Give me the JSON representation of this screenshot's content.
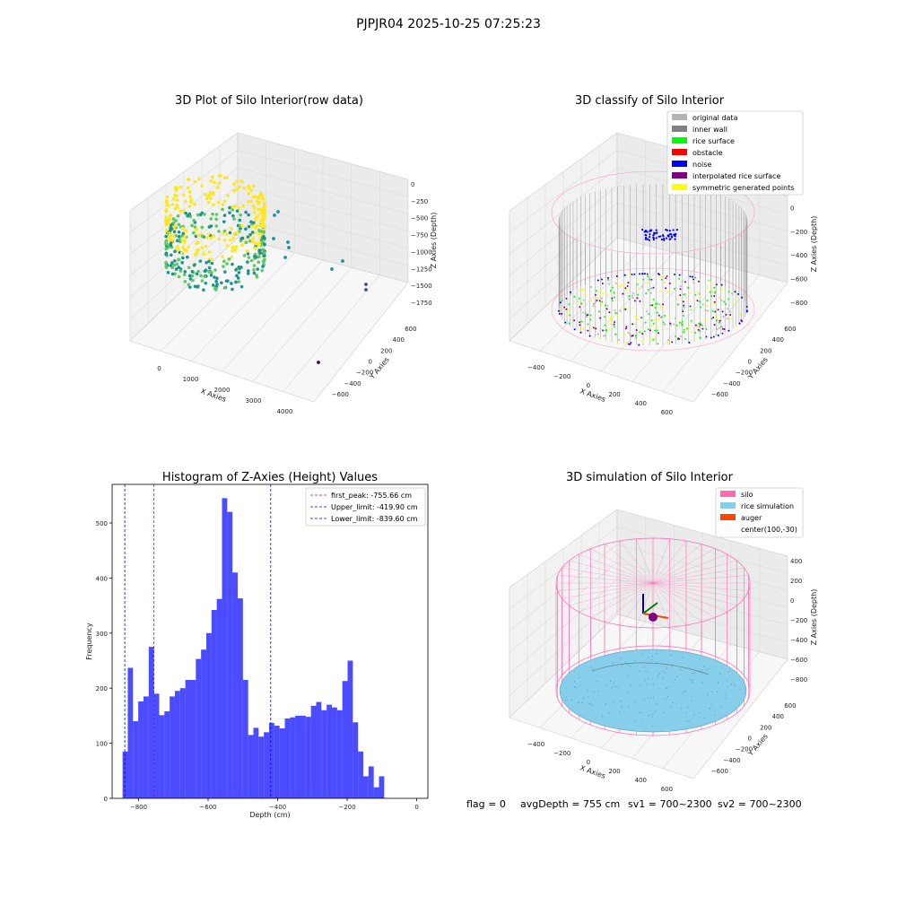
{
  "suptitle": "PJPJR04 2025-10-25 07:25:23",
  "footer": {
    "flag": "flag = 0",
    "avg_depth": "avgDepth = 755 cm",
    "sv1": "sv1 = 700~2300",
    "sv2": "sv2 = 700~2300"
  },
  "chart_data": [
    {
      "type": "scatter",
      "title": "3D Plot of Silo Interior(row data)",
      "xlabel": "X Axies",
      "ylabel": "Y Axies",
      "zlabel": "Z Axies (Depth)",
      "x_ticks": [
        "0",
        "1000",
        "2000",
        "3000",
        "4000"
      ],
      "y_ticks": [
        "600",
        "400",
        "200",
        "0",
        "−200",
        "−400",
        "−600"
      ],
      "z_ticks": [
        "0",
        "−250",
        "−500",
        "−750",
        "−1000",
        "−1250",
        "−1500",
        "−1750"
      ],
      "colormap": [
        "#fde725",
        "#5ec962",
        "#21918c",
        "#3b528b",
        "#440154"
      ]
    },
    {
      "type": "scatter",
      "title": "3D classify of Silo Interior",
      "xlabel": "X Axies",
      "ylabel": "Y Axies",
      "zlabel": "Z Axies (Depth)",
      "x_ticks": [
        "−400",
        "−200",
        "0",
        "200",
        "400",
        "600"
      ],
      "y_ticks": [
        "600",
        "400",
        "200",
        "0",
        "−200",
        "−400",
        "−600"
      ],
      "z_ticks": [
        "200",
        "0",
        "−200",
        "−400",
        "−600",
        "−800"
      ],
      "legend": [
        {
          "label": "original data",
          "color": "#b3b3b3"
        },
        {
          "label": "inner wall",
          "color": "#808080"
        },
        {
          "label": "rice surface",
          "color": "#00ff00"
        },
        {
          "label": "obstacle",
          "color": "#ff0000"
        },
        {
          "label": "noise",
          "color": "#0000ff"
        },
        {
          "label": "interpolated rice surface",
          "color": "#800080"
        },
        {
          "label": "symmetric generated points",
          "color": "#ffff00"
        }
      ]
    },
    {
      "type": "bar",
      "title": "Histogram of Z-Axies (Height) Values",
      "xlabel": "Depth (cm)",
      "ylabel": "Frequency",
      "xlim": [
        -876,
        32
      ],
      "ylim": [
        0,
        570
      ],
      "x_ticks": [
        -800,
        -600,
        -400,
        -200,
        0
      ],
      "x_tick_labels": [
        "−800",
        "−600",
        "−400",
        "−200",
        "0"
      ],
      "y_ticks": [
        0,
        100,
        200,
        300,
        400,
        500
      ],
      "bar_color": "#0000ff",
      "bin_start": -846,
      "bin_width": 15.05,
      "values": [
        85,
        237,
        140,
        176,
        185,
        275,
        190,
        151,
        158,
        185,
        195,
        200,
        215,
        215,
        253,
        270,
        300,
        342,
        362,
        545,
        520,
        410,
        363,
        215,
        115,
        128,
        112,
        120,
        137,
        132,
        127,
        145,
        147,
        150,
        150,
        148,
        168,
        175,
        160,
        170,
        165,
        160,
        213,
        250,
        138,
        85,
        40,
        58,
        20,
        40
      ],
      "vlines": [
        {
          "label": "first_peak: -755.66 cm",
          "x": -755.66,
          "color": "#ff0000"
        },
        {
          "label": "Upper_limit: -419.90 cm",
          "x": -419.9,
          "color": "#0000ff"
        },
        {
          "label": "Lower_limit: -839.60 cm",
          "x": -839.6,
          "color": "#0000ff"
        }
      ]
    },
    {
      "type": "scatter",
      "title": "3D simulation of Silo Interior",
      "xlabel": "X Axies",
      "ylabel": "Y Axies",
      "zlabel": "Z Axies (Depth)",
      "x_ticks": [
        "−400",
        "−200",
        "0",
        "200",
        "400",
        "600"
      ],
      "y_ticks": [
        "600",
        "400",
        "200",
        "0",
        "−200",
        "−400",
        "−600"
      ],
      "z_ticks": [
        "400",
        "200",
        "0",
        "−200",
        "−400",
        "−600",
        "−800"
      ],
      "legend": [
        {
          "label": "silo",
          "color": "#ff69b4"
        },
        {
          "label": "rice simulation",
          "color": "#87ceeb"
        },
        {
          "label": "auger",
          "color": "#ff4500"
        },
        {
          "label": "center(100,-30)",
          "color": "#800080"
        }
      ]
    }
  ]
}
